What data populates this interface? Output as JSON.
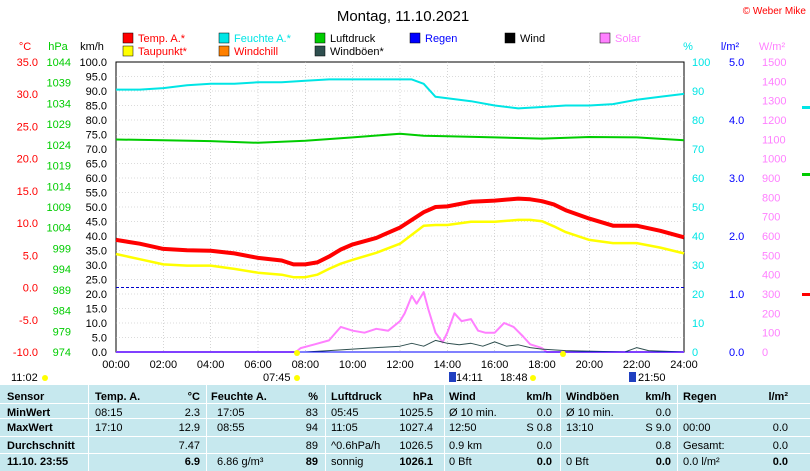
{
  "chart_data": {
    "type": "line",
    "title": "Montag, 11.10.2021",
    "credit": "© Weber Mike",
    "x_ticks": [
      "00:00",
      "02:00",
      "04:00",
      "06:00",
      "08:00",
      "10:00",
      "12:00",
      "14:00",
      "16:00",
      "18:00",
      "20:00",
      "22:00",
      "24:00"
    ],
    "legend": [
      {
        "label": "Temp. A.*",
        "color": "#ff0000"
      },
      {
        "label": "Feuchte A.*",
        "color": "#00e5e5"
      },
      {
        "label": "Luftdruck",
        "color": "#00cc00"
      },
      {
        "label": "Regen",
        "color": "#0000ff"
      },
      {
        "label": "Wind",
        "color": "#000000"
      },
      {
        "label": "Solar",
        "color": "#ff80ff"
      },
      {
        "label": "Taupunkt*",
        "color": "#ffff00"
      },
      {
        "label": "Windchill",
        "color": "#ff8000"
      },
      {
        "label": "Windböen*",
        "color": "#2f4f4f"
      }
    ],
    "axes": {
      "temp": {
        "label": "°C",
        "color": "#ff0000",
        "ticks": [
          "35.0",
          "30.0",
          "25.0",
          "20.0",
          "15.0",
          "10.0",
          "5.0",
          "0.0",
          "-5.0",
          "-10.0"
        ],
        "ylim": [
          -10,
          35
        ]
      },
      "pressure": {
        "label": "hPa",
        "color": "#00cc00",
        "ticks": [
          "1044",
          "1039",
          "1034",
          "1029",
          "1024",
          "1019",
          "1014",
          "1009",
          "1004",
          "999",
          "994",
          "989",
          "984",
          "979",
          "974"
        ],
        "ylim": [
          974,
          1044
        ]
      },
      "wind": {
        "label": "km/h",
        "color": "#000000",
        "ticks": [
          "100.0",
          "95.0",
          "90.0",
          "85.0",
          "80.0",
          "75.0",
          "70.0",
          "65.0",
          "60.0",
          "55.0",
          "50.0",
          "45.0",
          "40.0",
          "35.0",
          "30.0",
          "25.0",
          "20.0",
          "15.0",
          "10.0",
          "5.0",
          "0.0"
        ],
        "ylim": [
          0,
          100
        ]
      },
      "humidity": {
        "label": "%",
        "color": "#00e5e5",
        "ticks": [
          "100",
          "90",
          "80",
          "70",
          "60",
          "50",
          "40",
          "30",
          "20",
          "10",
          "0"
        ],
        "ylim": [
          0,
          100
        ]
      },
      "rain": {
        "label": "l/m²",
        "color": "#0000ff",
        "ticks": [
          "5.0",
          "4.0",
          "3.0",
          "2.0",
          "1.0",
          "0.0"
        ],
        "ylim": [
          0,
          5
        ]
      },
      "solar": {
        "label": "W/m²",
        "color": "#ff80ff",
        "ticks": [
          "1500",
          "1400",
          "1300",
          "1200",
          "1100",
          "1000",
          "900",
          "800",
          "700",
          "600",
          "500",
          "400",
          "300",
          "200",
          "100",
          "0"
        ],
        "ylim": [
          0,
          1500
        ]
      }
    },
    "series": [
      {
        "name": "Temp. A.*",
        "axis": "temp",
        "color": "#ff0000",
        "x": [
          0,
          1,
          2,
          3,
          4,
          5,
          6,
          7,
          7.5,
          8,
          8.5,
          9,
          9.5,
          10,
          11,
          12,
          13,
          13.5,
          14,
          15,
          16,
          17,
          17.5,
          18,
          18.5,
          19,
          20,
          21,
          22,
          23,
          24
        ],
        "y": [
          7.4,
          6.8,
          6.0,
          5.8,
          5.7,
          5.3,
          4.6,
          4.2,
          3.6,
          3.6,
          3.9,
          4.8,
          5.9,
          6.7,
          7.7,
          9.3,
          11.7,
          12.5,
          12.6,
          13.3,
          13.5,
          13.8,
          13.7,
          13.4,
          12.9,
          12.0,
          10.7,
          9.6,
          9.6,
          8.8,
          7.8
        ]
      },
      {
        "name": "Taupunkt*",
        "axis": "temp",
        "color": "#ffff00",
        "x": [
          0,
          1,
          2,
          3,
          4,
          5,
          6,
          7,
          7.5,
          8,
          8.5,
          9,
          9.5,
          10,
          11,
          12,
          13,
          13.5,
          14,
          15,
          16,
          17,
          17.5,
          18,
          18.5,
          19,
          20,
          21,
          22,
          23,
          24
        ],
        "y": [
          5.2,
          4.4,
          3.6,
          3.4,
          3.4,
          2.9,
          2.3,
          2.0,
          1.6,
          1.6,
          2.0,
          2.9,
          3.7,
          4.3,
          5.4,
          6.8,
          9.6,
          9.7,
          9.7,
          10.2,
          10.2,
          10.5,
          10.5,
          10.3,
          9.5,
          8.6,
          7.4,
          6.9,
          6.9,
          6.2,
          5.3
        ]
      },
      {
        "name": "Feuchte A.*",
        "axis": "humidity",
        "color": "#00e5e5",
        "x": [
          0,
          1,
          2,
          3,
          4,
          5,
          6,
          7,
          8,
          9,
          10,
          11,
          12,
          12.5,
          13,
          13.5,
          14,
          15,
          16,
          17,
          18,
          19,
          20,
          21,
          22,
          23,
          24
        ],
        "y": [
          90.5,
          90.5,
          91,
          92,
          92.5,
          92.5,
          93,
          93,
          93.5,
          94,
          94,
          94,
          94,
          94,
          92.5,
          88,
          87.5,
          86.5,
          85,
          84,
          84.5,
          85,
          85,
          85.5,
          87,
          88,
          89
        ]
      },
      {
        "name": "Luftdruck",
        "axis": "pressure",
        "color": "#00cc00",
        "x": [
          0,
          2,
          4,
          6,
          8,
          10,
          12,
          13,
          14,
          16,
          18,
          20,
          22,
          24
        ],
        "y": [
          1025.3,
          1025.1,
          1024.9,
          1024.5,
          1025.0,
          1025.8,
          1026.7,
          1026.2,
          1026.1,
          1025.8,
          1025.5,
          1025.9,
          1025.8,
          1025.1
        ]
      },
      {
        "name": "Solar",
        "axis": "solar",
        "color": "#ff80ff",
        "x": [
          0,
          7.6,
          7.8,
          8.4,
          9,
          9.5,
          10,
          10.5,
          11,
          11.5,
          12,
          12.2,
          12.5,
          12.7,
          13,
          13.2,
          13.5,
          13.8,
          14,
          14.3,
          14.6,
          15,
          15.3,
          15.6,
          16,
          16.4,
          16.8,
          17.2,
          17.5,
          18,
          18.2,
          24
        ],
        "y": [
          0,
          0,
          20,
          40,
          60,
          130,
          110,
          100,
          120,
          110,
          160,
          200,
          290,
          250,
          310,
          220,
          100,
          50,
          100,
          200,
          160,
          170,
          110,
          100,
          100,
          150,
          130,
          80,
          40,
          20,
          0,
          0
        ]
      },
      {
        "name": "Windböen*",
        "axis": "wind",
        "color": "#2f4f4f",
        "x": [
          0,
          8,
          9,
          10,
          11,
          12,
          12.5,
          13,
          13.5,
          14,
          14.5,
          15,
          15.5,
          16,
          16.5,
          17,
          17.5,
          18,
          19,
          21.5,
          22,
          22.5,
          24
        ],
        "y": [
          0,
          0,
          0.5,
          1,
          1.5,
          2,
          3,
          2,
          4,
          3,
          2.5,
          3,
          2,
          3.5,
          2,
          2.5,
          1.5,
          1,
          0.5,
          0,
          1.5,
          0.5,
          0
        ]
      },
      {
        "name": "Wind",
        "axis": "wind",
        "color": "#000000",
        "x": [
          0,
          24
        ],
        "y": [
          0,
          0
        ]
      },
      {
        "name": "Regen",
        "axis": "rain",
        "color": "#0000ff",
        "x": [
          0,
          24
        ],
        "y": [
          0,
          0
        ]
      }
    ],
    "zero_line_temp": 0,
    "markers": [
      {
        "label": "11:02"
      },
      {
        "label": "07:45"
      },
      {
        "label": "14:11"
      },
      {
        "label": "18:48"
      },
      {
        "label": "21:50"
      }
    ]
  },
  "table": {
    "headers": [
      "Sensor",
      "Temp. A.",
      "°C",
      "Feuchte A.",
      "%",
      "Luftdruck",
      "hPa",
      "Wind",
      "km/h",
      "Windböen",
      "km/h",
      "Regen",
      "l/m²"
    ],
    "rows": [
      {
        "label": "MinWert",
        "c": [
          "08:15",
          "2.3",
          "17:05",
          "83",
          "05:45",
          "1025.5",
          "Ø 10 min.",
          "0.0",
          "Ø 10 min.",
          "0.0",
          "",
          ""
        ]
      },
      {
        "label": "MaxWert",
        "c": [
          "17:10",
          "12.9",
          "08:55",
          "94",
          "11:05",
          "1027.4",
          "12:50",
          "S 0.8",
          "13:10",
          "S 9.0",
          "00:00",
          "0.0"
        ]
      },
      {
        "label": "Durchschnitt",
        "c": [
          "",
          "7.47",
          "",
          "89",
          "^0.6hPa/h",
          "1026.5",
          "0.9 km",
          "0.0",
          "",
          "0.8",
          "Gesamt:",
          "0.0"
        ]
      },
      {
        "label": "11.10. 23:55",
        "c": [
          "",
          "6.9",
          "6.86 g/m³",
          "89",
          "sonnig",
          "1026.1",
          "0 Bft",
          "0.0",
          "0 Bft",
          "0.0",
          "0.0 l/m²",
          "0.0"
        ]
      }
    ]
  }
}
